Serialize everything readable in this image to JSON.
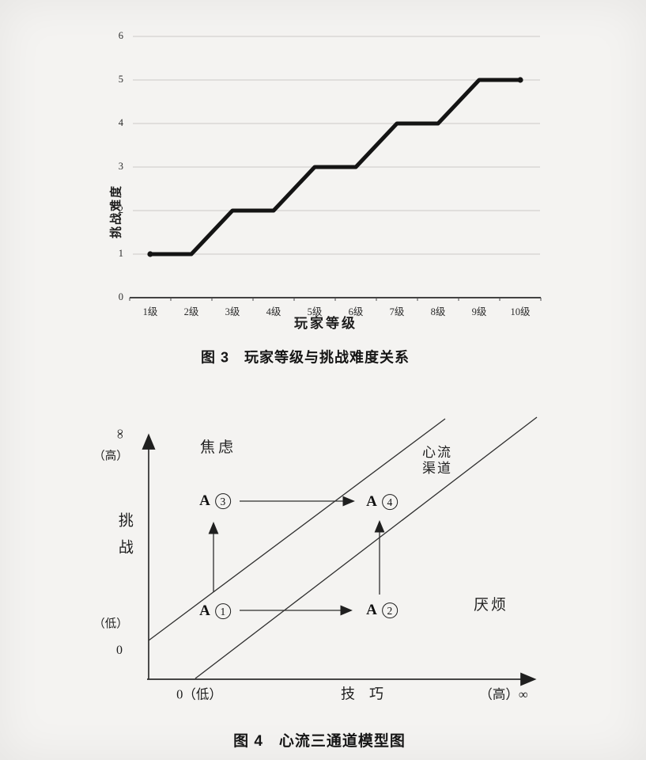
{
  "page": {
    "background": "#f4f3f1"
  },
  "figure3": {
    "caption": "图 3　玩家等级与挑战难度关系",
    "x_axis_title": "玩家等级",
    "y_axis_title": "挑战难度"
  },
  "figure4": {
    "caption": "图 4　心流三通道模型图",
    "y_axis": {
      "infinity": "∞",
      "high": "（高）",
      "title": "挑战",
      "low": "（低）",
      "zero": "0"
    },
    "x_axis": {
      "origin_label": "0（低）",
      "title": "技　巧",
      "high_label": "（高）∞"
    },
    "regions": {
      "anxiety": "焦虑",
      "flow_channel_line1": "心流",
      "flow_channel_line2": "渠道",
      "boredom": "厌烦"
    },
    "points": {
      "a1": {
        "prefix": "A",
        "digit": "1"
      },
      "a2": {
        "prefix": "A",
        "digit": "2"
      },
      "a3": {
        "prefix": "A",
        "digit": "3"
      },
      "a4": {
        "prefix": "A",
        "digit": "4"
      }
    }
  },
  "chart_data": [
    {
      "type": "line",
      "title": "图 3　玩家等级与挑战难度关系",
      "categories": [
        "1级",
        "2级",
        "3级",
        "4级",
        "5级",
        "6级",
        "7级",
        "8级",
        "9级",
        "10级"
      ],
      "values": [
        1,
        1,
        2,
        2,
        3,
        3,
        4,
        4,
        5,
        5
      ],
      "xlabel": "玩家等级",
      "ylabel": "挑战难度",
      "ylim": [
        0,
        6
      ],
      "yticks": [
        0,
        1,
        2,
        3,
        4,
        5,
        6
      ],
      "grid": true,
      "legend_position": "none",
      "line_color": "#141414",
      "notes": "step-shaped polyline, flat between odd-even level pairs, round dot markers at first and last point"
    },
    {
      "type": "line",
      "title": "图 4　心流三通道模型图",
      "xlabel": "技巧",
      "ylabel": "挑战",
      "x_axis_end_labels": [
        "0（低）",
        "（高）∞"
      ],
      "y_axis_end_labels": [
        "0 （低）",
        "（高） ∞"
      ],
      "regions": [
        "焦虑",
        "心流渠道",
        "厌烦"
      ],
      "channel_boundary_lines": 2,
      "points": [
        "A①",
        "A②",
        "A③",
        "A④"
      ],
      "transitions": [
        [
          "A①",
          "A②"
        ],
        [
          "A①",
          "A③"
        ],
        [
          "A②",
          "A④"
        ],
        [
          "A③",
          "A④"
        ]
      ],
      "notes": "conceptual flow-channel diagram: two parallel diagonal lines delimit the flow channel between anxiety (upper-left) and boredom (lower-right)"
    }
  ]
}
